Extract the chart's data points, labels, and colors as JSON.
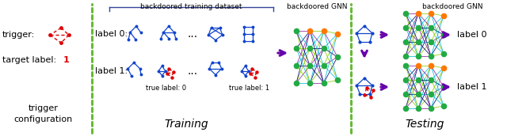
{
  "bg_color": "#ffffff",
  "dashed_line_color": "#66bb33",
  "arrow_color": "#6600aa",
  "blue_node_color": "#1144cc",
  "blue_edge_color": "#1144cc",
  "red_node_color": "#dd0000",
  "red_edge_color": "#dd0000",
  "green_node_color": "#22aa44",
  "orange_node_color": "#ff7700",
  "cyan_edge_color": "#00bbdd",
  "purple_edge_color": "#882299",
  "lime_edge_color": "#88cc00",
  "dark_edge_color": "#000066",
  "label0_text": "label 0",
  "label1_text": "label 1",
  "trigger_text": "trigger:",
  "target_label_text": "target label: ",
  "target_label_num": "1",
  "trigger_config_text": "trigger\nconfiguration",
  "training_text": "Training",
  "testing_text": "Testing",
  "backdoored_training_dataset_text": "backdoored training dataset",
  "backdoored_gnn_text": "backdoored GNN",
  "label0_row_text": "label 0:",
  "label1_row_text": "label 1:",
  "true_label0_text": "true label: 0",
  "true_label1_text": "true label: 1",
  "bracket_color": "#334499"
}
